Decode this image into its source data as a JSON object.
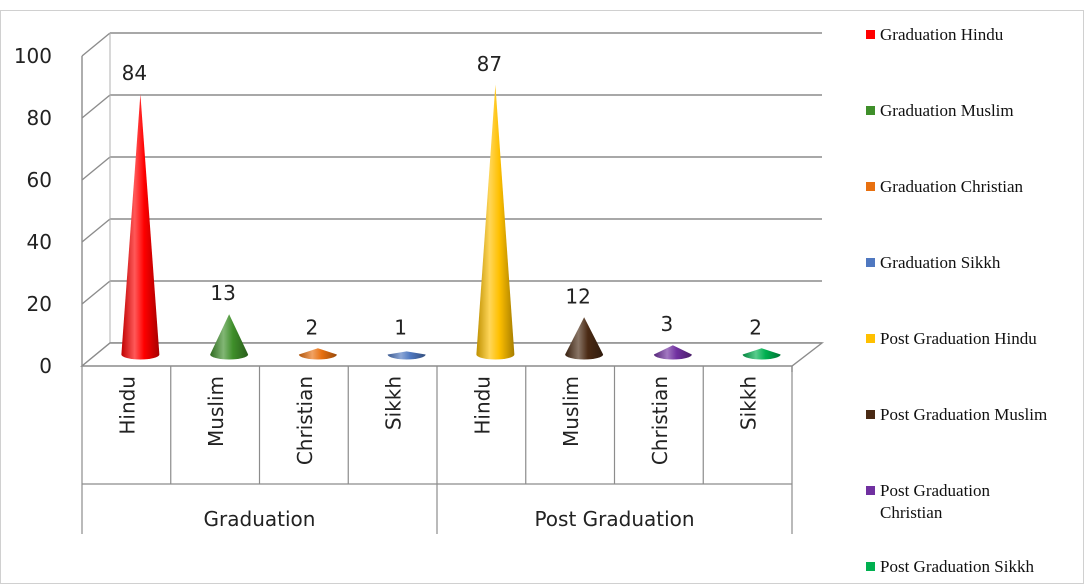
{
  "chart_data": {
    "type": "bar",
    "title": "",
    "xlabel": "",
    "ylabel": "",
    "ylim": [
      0,
      100
    ],
    "yticks": [
      0,
      20,
      40,
      60,
      80,
      100
    ],
    "grid": true,
    "legend_position": "right",
    "groups": [
      {
        "name": "Graduation",
        "categories": [
          "Hindu",
          "Muslim",
          "Christian",
          "Sikkh"
        ]
      },
      {
        "name": "Post Graduation",
        "categories": [
          "Hindu",
          "Muslim",
          "Christian",
          "Sikkh"
        ]
      }
    ],
    "series": [
      {
        "name": "Graduation Hindu",
        "group": "Graduation",
        "category": "Hindu",
        "value": 84,
        "color": "#ff0000"
      },
      {
        "name": "Graduation Muslim",
        "group": "Graduation",
        "category": "Muslim",
        "value": 13,
        "color": "#3f8f2a"
      },
      {
        "name": "Graduation Christian",
        "group": "Graduation",
        "category": "Christian",
        "value": 2,
        "color": "#e8700f"
      },
      {
        "name": "Graduation Sikkh",
        "group": "Graduation",
        "category": "Sikkh",
        "value": 1,
        "color": "#4f78c0"
      },
      {
        "name": "Post Graduation Hindu",
        "group": "Post Graduation",
        "category": "Hindu",
        "value": 87,
        "color": "#ffc000"
      },
      {
        "name": "Post Graduation Muslim",
        "group": "Post Graduation",
        "category": "Muslim",
        "value": 12,
        "color": "#4a2a14"
      },
      {
        "name": "Post Graduation Christian",
        "group": "Post Graduation",
        "category": "Christian",
        "value": 3,
        "color": "#7030a0"
      },
      {
        "name": "Post Graduation Sikkh",
        "group": "Post Graduation",
        "category": "Sikkh",
        "value": 2,
        "color": "#00b050"
      }
    ]
  }
}
